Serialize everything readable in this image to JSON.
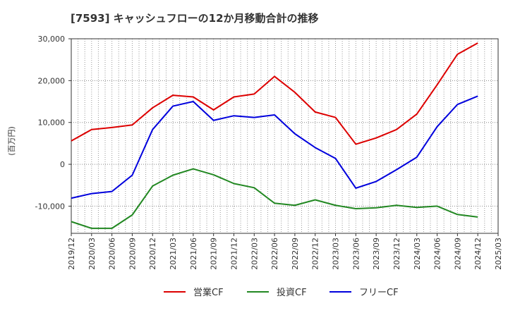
{
  "chart_data": {
    "type": "line",
    "title": "[7593]  キャッシュフローの12か月移動合計の推移",
    "ylabel": "(百万円)",
    "xlabel": "",
    "ylim": [
      -16500,
      30000
    ],
    "y_ticks": [
      30000,
      20000,
      10000,
      0,
      -10000
    ],
    "y_tick_labels": [
      "30,000",
      "20,000",
      "10,000",
      "0",
      "-10,000"
    ],
    "categories": [
      "2019/12",
      "2020/03",
      "2020/06",
      "2020/09",
      "2020/12",
      "2021/03",
      "2021/06",
      "2021/09",
      "2021/12",
      "2022/03",
      "2022/06",
      "2022/09",
      "2022/12",
      "2023/03",
      "2023/06",
      "2023/09",
      "2023/12",
      "2024/03",
      "2024/06",
      "2024/09",
      "2024/12",
      "2025/03"
    ],
    "series": [
      {
        "name": "営業CF",
        "color": "#dd0000",
        "values": [
          5600,
          8300,
          8800,
          9400,
          13500,
          16500,
          16100,
          13000,
          16100,
          16800,
          21000,
          17200,
          12500,
          11200,
          4800,
          6300,
          8300,
          12000,
          19000,
          26300,
          29000,
          null
        ]
      },
      {
        "name": "投資CF",
        "color": "#228822",
        "values": [
          -13700,
          -15300,
          -15300,
          -12100,
          -5200,
          -2600,
          -1100,
          -2500,
          -4600,
          -5600,
          -9300,
          -9800,
          -8500,
          -9800,
          -10600,
          -10400,
          -9800,
          -10300,
          -10000,
          -12000,
          -12600,
          null
        ]
      },
      {
        "name": "フリーCF",
        "color": "#0000dd",
        "values": [
          -8100,
          -7000,
          -6500,
          -2600,
          8300,
          13900,
          15000,
          10500,
          11600,
          11200,
          11800,
          7300,
          4000,
          1400,
          -5700,
          -4100,
          -1300,
          1700,
          9000,
          14300,
          16300,
          null
        ]
      }
    ],
    "legend": "bottom"
  }
}
